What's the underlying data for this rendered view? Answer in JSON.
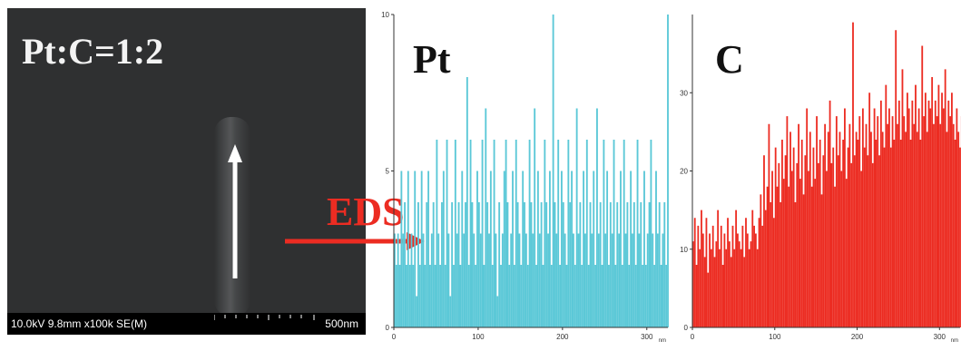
{
  "sem": {
    "label": "Pt:C=1:2",
    "info_text": "10.0kV 9.8mm x100k SE(M)",
    "scale_text": "500nm"
  },
  "eds_label": "EDS",
  "colors": {
    "pt": "#5bc8d7",
    "c": "#ec2c22",
    "arrow": "#ec2c22"
  },
  "chart_data": [
    {
      "type": "bar",
      "title": "Pt",
      "xlabel": "nm",
      "ylabel": "",
      "xlim": [
        0,
        325
      ],
      "ylim": [
        0,
        10
      ],
      "xticks": [
        0,
        100,
        200,
        300
      ],
      "yticks": [
        0,
        5,
        10
      ],
      "x_step": 2,
      "series": [
        {
          "values": [
            3,
            2,
            3,
            2,
            5,
            3,
            4,
            2,
            5,
            2,
            3,
            2,
            5,
            1,
            4,
            2,
            5,
            3,
            2,
            4,
            5,
            2,
            3,
            4,
            2,
            6,
            3,
            2,
            4,
            5,
            2,
            6,
            3,
            1,
            4,
            2,
            6,
            3,
            4,
            2,
            5,
            3,
            4,
            8,
            2,
            6,
            4,
            3,
            2,
            5,
            4,
            3,
            6,
            2,
            7,
            4,
            3,
            5,
            2,
            6,
            3,
            1,
            4,
            2,
            3,
            5,
            6,
            4,
            2,
            3,
            5,
            2,
            6,
            4,
            3,
            2,
            5,
            4,
            3,
            2,
            6,
            4,
            3,
            7,
            2,
            5,
            3,
            4,
            2,
            6,
            4,
            3,
            5,
            2,
            10,
            4,
            3,
            6,
            2,
            5,
            4,
            3,
            2,
            6,
            4,
            5,
            3,
            2,
            7,
            3,
            4,
            2,
            5,
            3,
            6,
            2,
            4,
            3,
            5,
            2,
            7,
            3,
            4,
            2,
            6,
            3,
            5,
            2,
            4,
            3,
            6,
            2,
            4,
            3,
            5,
            2,
            6,
            3,
            4,
            2,
            5,
            3,
            4,
            2,
            6,
            3,
            4,
            2,
            5,
            2,
            3,
            4,
            6,
            3,
            2,
            5,
            3,
            4,
            2,
            3,
            4,
            2,
            10
          ]
        }
      ]
    },
    {
      "type": "bar",
      "title": "C",
      "xlabel": "nm",
      "ylabel": "",
      "xlim": [
        0,
        325
      ],
      "ylim": [
        0,
        40
      ],
      "xticks": [
        0,
        100,
        200,
        300
      ],
      "yticks": [
        0,
        10,
        20,
        30
      ],
      "x_step": 2,
      "series": [
        {
          "values": [
            11,
            14,
            8,
            13,
            10,
            15,
            12,
            9,
            14,
            7,
            12,
            10,
            13,
            9,
            11,
            15,
            10,
            13,
            8,
            12,
            10,
            14,
            11,
            9,
            13,
            10,
            15,
            12,
            11,
            10,
            13,
            9,
            14,
            12,
            10,
            11,
            15,
            13,
            12,
            10,
            14,
            17,
            13,
            22,
            15,
            18,
            26,
            16,
            20,
            14,
            23,
            18,
            21,
            16,
            24,
            19,
            22,
            27,
            18,
            25,
            20,
            23,
            16,
            21,
            26,
            19,
            24,
            17,
            22,
            28,
            20,
            25,
            18,
            23,
            19,
            27,
            21,
            24,
            17,
            22,
            26,
            20,
            25,
            29,
            21,
            23,
            18,
            27,
            22,
            25,
            20,
            24,
            28,
            19,
            23,
            26,
            21,
            39,
            22,
            25,
            24,
            27,
            20,
            28,
            23,
            26,
            22,
            30,
            25,
            21,
            28,
            24,
            27,
            22,
            29,
            25,
            23,
            31,
            26,
            28,
            23,
            27,
            24,
            38,
            26,
            29,
            24,
            33,
            27,
            25,
            30,
            28,
            24,
            29,
            26,
            31,
            25,
            28,
            24,
            36,
            27,
            30,
            25,
            29,
            28,
            32,
            26,
            29,
            27,
            31,
            26,
            30,
            28,
            33,
            25,
            29,
            27,
            30,
            26,
            24,
            28,
            25,
            23,
            27,
            24,
            29,
            26
          ]
        }
      ]
    }
  ]
}
